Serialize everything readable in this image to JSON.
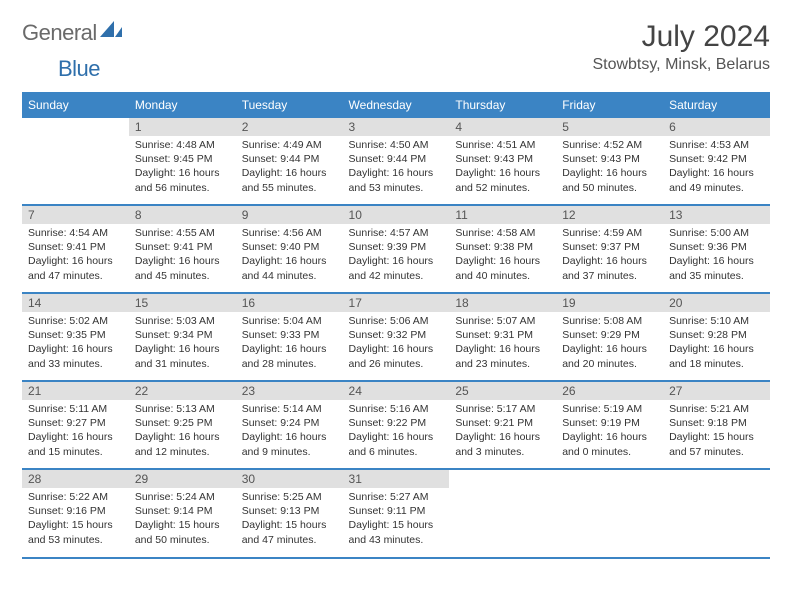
{
  "logo": {
    "part1": "General",
    "part2": "Blue",
    "color_general": "#6a6a6a",
    "color_blue": "#2f6fab",
    "icon_color": "#2f6fab"
  },
  "title": "July 2024",
  "subtitle": "Stowbtsy, Minsk, Belarus",
  "styling": {
    "header_bg": "#3b84c4",
    "header_text": "#ffffff",
    "daynum_bg": "#e0e0e0",
    "row_divider": "#3b84c4",
    "body_text": "#333333",
    "page_bg": "#ffffff",
    "font_family": "Arial",
    "header_fontsize": 12,
    "cell_fontsize": 10.5,
    "title_fontsize": 30,
    "subtitle_fontsize": 16
  },
  "days_of_week": [
    "Sunday",
    "Monday",
    "Tuesday",
    "Wednesday",
    "Thursday",
    "Friday",
    "Saturday"
  ],
  "weeks": [
    [
      null,
      {
        "n": "1",
        "sr": "Sunrise: 4:48 AM",
        "ss": "Sunset: 9:45 PM",
        "dl1": "Daylight: 16 hours",
        "dl2": "and 56 minutes."
      },
      {
        "n": "2",
        "sr": "Sunrise: 4:49 AM",
        "ss": "Sunset: 9:44 PM",
        "dl1": "Daylight: 16 hours",
        "dl2": "and 55 minutes."
      },
      {
        "n": "3",
        "sr": "Sunrise: 4:50 AM",
        "ss": "Sunset: 9:44 PM",
        "dl1": "Daylight: 16 hours",
        "dl2": "and 53 minutes."
      },
      {
        "n": "4",
        "sr": "Sunrise: 4:51 AM",
        "ss": "Sunset: 9:43 PM",
        "dl1": "Daylight: 16 hours",
        "dl2": "and 52 minutes."
      },
      {
        "n": "5",
        "sr": "Sunrise: 4:52 AM",
        "ss": "Sunset: 9:43 PM",
        "dl1": "Daylight: 16 hours",
        "dl2": "and 50 minutes."
      },
      {
        "n": "6",
        "sr": "Sunrise: 4:53 AM",
        "ss": "Sunset: 9:42 PM",
        "dl1": "Daylight: 16 hours",
        "dl2": "and 49 minutes."
      }
    ],
    [
      {
        "n": "7",
        "sr": "Sunrise: 4:54 AM",
        "ss": "Sunset: 9:41 PM",
        "dl1": "Daylight: 16 hours",
        "dl2": "and 47 minutes."
      },
      {
        "n": "8",
        "sr": "Sunrise: 4:55 AM",
        "ss": "Sunset: 9:41 PM",
        "dl1": "Daylight: 16 hours",
        "dl2": "and 45 minutes."
      },
      {
        "n": "9",
        "sr": "Sunrise: 4:56 AM",
        "ss": "Sunset: 9:40 PM",
        "dl1": "Daylight: 16 hours",
        "dl2": "and 44 minutes."
      },
      {
        "n": "10",
        "sr": "Sunrise: 4:57 AM",
        "ss": "Sunset: 9:39 PM",
        "dl1": "Daylight: 16 hours",
        "dl2": "and 42 minutes."
      },
      {
        "n": "11",
        "sr": "Sunrise: 4:58 AM",
        "ss": "Sunset: 9:38 PM",
        "dl1": "Daylight: 16 hours",
        "dl2": "and 40 minutes."
      },
      {
        "n": "12",
        "sr": "Sunrise: 4:59 AM",
        "ss": "Sunset: 9:37 PM",
        "dl1": "Daylight: 16 hours",
        "dl2": "and 37 minutes."
      },
      {
        "n": "13",
        "sr": "Sunrise: 5:00 AM",
        "ss": "Sunset: 9:36 PM",
        "dl1": "Daylight: 16 hours",
        "dl2": "and 35 minutes."
      }
    ],
    [
      {
        "n": "14",
        "sr": "Sunrise: 5:02 AM",
        "ss": "Sunset: 9:35 PM",
        "dl1": "Daylight: 16 hours",
        "dl2": "and 33 minutes."
      },
      {
        "n": "15",
        "sr": "Sunrise: 5:03 AM",
        "ss": "Sunset: 9:34 PM",
        "dl1": "Daylight: 16 hours",
        "dl2": "and 31 minutes."
      },
      {
        "n": "16",
        "sr": "Sunrise: 5:04 AM",
        "ss": "Sunset: 9:33 PM",
        "dl1": "Daylight: 16 hours",
        "dl2": "and 28 minutes."
      },
      {
        "n": "17",
        "sr": "Sunrise: 5:06 AM",
        "ss": "Sunset: 9:32 PM",
        "dl1": "Daylight: 16 hours",
        "dl2": "and 26 minutes."
      },
      {
        "n": "18",
        "sr": "Sunrise: 5:07 AM",
        "ss": "Sunset: 9:31 PM",
        "dl1": "Daylight: 16 hours",
        "dl2": "and 23 minutes."
      },
      {
        "n": "19",
        "sr": "Sunrise: 5:08 AM",
        "ss": "Sunset: 9:29 PM",
        "dl1": "Daylight: 16 hours",
        "dl2": "and 20 minutes."
      },
      {
        "n": "20",
        "sr": "Sunrise: 5:10 AM",
        "ss": "Sunset: 9:28 PM",
        "dl1": "Daylight: 16 hours",
        "dl2": "and 18 minutes."
      }
    ],
    [
      {
        "n": "21",
        "sr": "Sunrise: 5:11 AM",
        "ss": "Sunset: 9:27 PM",
        "dl1": "Daylight: 16 hours",
        "dl2": "and 15 minutes."
      },
      {
        "n": "22",
        "sr": "Sunrise: 5:13 AM",
        "ss": "Sunset: 9:25 PM",
        "dl1": "Daylight: 16 hours",
        "dl2": "and 12 minutes."
      },
      {
        "n": "23",
        "sr": "Sunrise: 5:14 AM",
        "ss": "Sunset: 9:24 PM",
        "dl1": "Daylight: 16 hours",
        "dl2": "and 9 minutes."
      },
      {
        "n": "24",
        "sr": "Sunrise: 5:16 AM",
        "ss": "Sunset: 9:22 PM",
        "dl1": "Daylight: 16 hours",
        "dl2": "and 6 minutes."
      },
      {
        "n": "25",
        "sr": "Sunrise: 5:17 AM",
        "ss": "Sunset: 9:21 PM",
        "dl1": "Daylight: 16 hours",
        "dl2": "and 3 minutes."
      },
      {
        "n": "26",
        "sr": "Sunrise: 5:19 AM",
        "ss": "Sunset: 9:19 PM",
        "dl1": "Daylight: 16 hours",
        "dl2": "and 0 minutes."
      },
      {
        "n": "27",
        "sr": "Sunrise: 5:21 AM",
        "ss": "Sunset: 9:18 PM",
        "dl1": "Daylight: 15 hours",
        "dl2": "and 57 minutes."
      }
    ],
    [
      {
        "n": "28",
        "sr": "Sunrise: 5:22 AM",
        "ss": "Sunset: 9:16 PM",
        "dl1": "Daylight: 15 hours",
        "dl2": "and 53 minutes."
      },
      {
        "n": "29",
        "sr": "Sunrise: 5:24 AM",
        "ss": "Sunset: 9:14 PM",
        "dl1": "Daylight: 15 hours",
        "dl2": "and 50 minutes."
      },
      {
        "n": "30",
        "sr": "Sunrise: 5:25 AM",
        "ss": "Sunset: 9:13 PM",
        "dl1": "Daylight: 15 hours",
        "dl2": "and 47 minutes."
      },
      {
        "n": "31",
        "sr": "Sunrise: 5:27 AM",
        "ss": "Sunset: 9:11 PM",
        "dl1": "Daylight: 15 hours",
        "dl2": "and 43 minutes."
      },
      null,
      null,
      null
    ]
  ]
}
